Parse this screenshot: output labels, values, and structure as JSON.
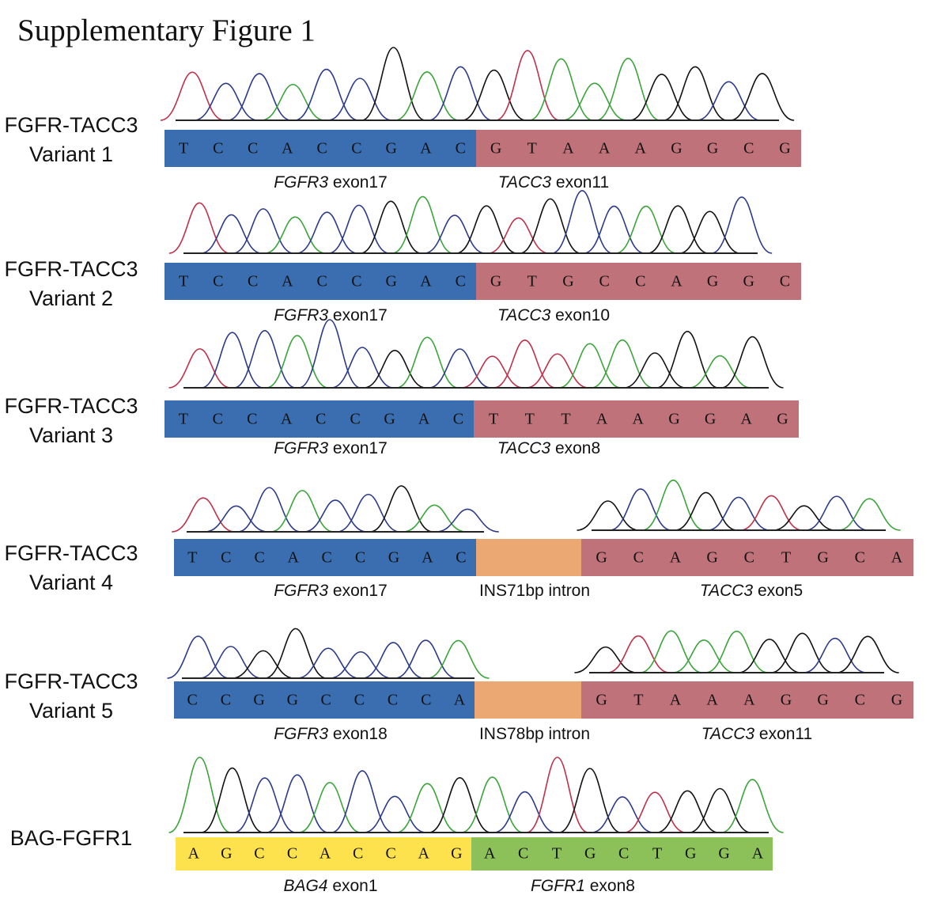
{
  "title": "Supplementary Figure 1",
  "base_colors": {
    "A": "#3aa53a",
    "C": "#2c3a8c",
    "G": "#111111",
    "T": "#c0304a"
  },
  "panels": [
    {
      "label_line1": "FGFR-TACC3",
      "label_line2": "Variant 1",
      "segments": [
        {
          "sequence": "TCCACCGAC",
          "gene": "FGFR3",
          "suffix": " exon17",
          "color": "#3a6eb0"
        },
        {
          "sequence": "GTAAAGGCG",
          "gene": "TACC3",
          "suffix": " exon11",
          "color": "#c0727a"
        }
      ]
    },
    {
      "label_line1": "FGFR-TACC3",
      "label_line2": "Variant 2",
      "segments": [
        {
          "sequence": "TCCACCGAC",
          "gene": "FGFR3",
          "suffix": " exon17",
          "color": "#3a6eb0"
        },
        {
          "sequence": "GTGCCAGGC",
          "gene": "TACC3",
          "suffix": " exon10",
          "color": "#c0727a"
        }
      ]
    },
    {
      "label_line1": "FGFR-TACC3",
      "label_line2": "Variant 3",
      "segments": [
        {
          "sequence": "TCCACCGAC",
          "gene": "FGFR3",
          "suffix": " exon17",
          "color": "#3a6eb0"
        },
        {
          "sequence": "TTTAAGGAG",
          "gene": "TACC3",
          "suffix": " exon8",
          "color": "#c0727a"
        }
      ]
    },
    {
      "label_line1": "FGFR-TACC3",
      "label_line2": "Variant 4",
      "segments": [
        {
          "sequence": "TCCACCGAC",
          "gene": "FGFR3",
          "suffix": " exon17",
          "color": "#3a6eb0"
        },
        {
          "sequence": "",
          "gene": "",
          "suffix": "INS71bp intron",
          "color": "#eca873"
        },
        {
          "sequence": "GCAGCTGCA",
          "gene": "TACC3",
          "suffix": " exon5",
          "color": "#c0727a"
        }
      ]
    },
    {
      "label_line1": "FGFR-TACC3",
      "label_line2": "Variant 5",
      "segments": [
        {
          "sequence": "CCGGCCCCA",
          "gene": "FGFR3",
          "suffix": " exon18",
          "color": "#3a6eb0"
        },
        {
          "sequence": "",
          "gene": "",
          "suffix": "INS78bp intron",
          "color": "#eca873"
        },
        {
          "sequence": "GTAAAGGCG",
          "gene": "TACC3",
          "suffix": " exon11",
          "color": "#c0727a"
        }
      ]
    },
    {
      "label_line1": "BAG-FGFR1",
      "label_line2": "",
      "segments": [
        {
          "sequence": "AGCCACCAG",
          "gene": "BAG4",
          "suffix": " exon1",
          "color": "#fde24e"
        },
        {
          "sequence": "ACTGCTGGA",
          "gene": "FGFR1",
          "suffix": " exon8",
          "color": "#8cc15a"
        }
      ]
    }
  ]
}
